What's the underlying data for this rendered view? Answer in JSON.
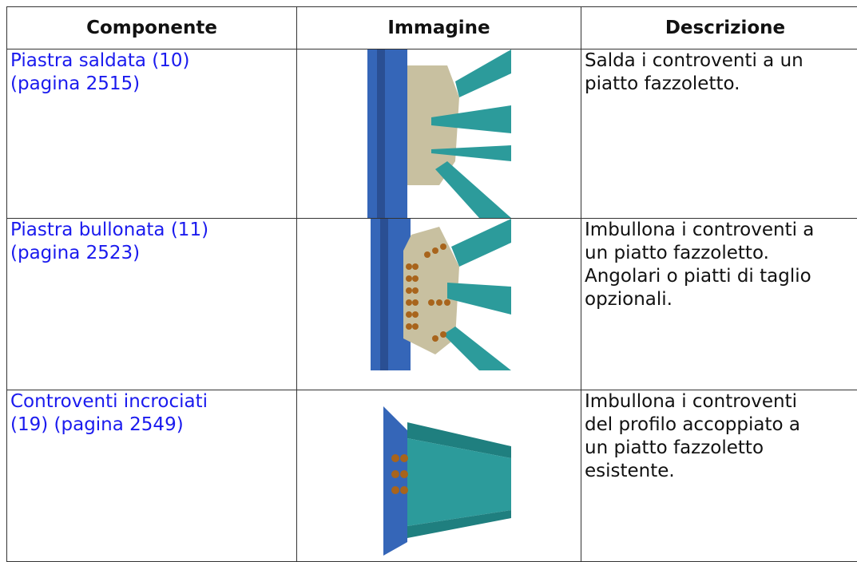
{
  "table": {
    "header": [
      "Componente",
      "Immagine",
      "Descrizione"
    ],
    "rows": [
      {
        "link": [
          "Piastra saldata (10)",
          "(pagina 2515)"
        ],
        "description": [
          "Salda i controventi a un",
          "piatto fazzoletto."
        ]
      },
      {
        "link": [
          "Piastra bullonata (11)",
          "(pagina 2523)"
        ],
        "description": [
          "Imbullona i controventi a",
          "un piatto fazzoletto.",
          "Angolari o piatti di taglio",
          "opzionali."
        ]
      },
      {
        "link": [
          "Controventi incrociati",
          "(19) (pagina 2549)"
        ],
        "description": [
          "Imbullona i controventi",
          "del profilo accoppiato a",
          "un piatto fazzoletto",
          "esistente."
        ]
      }
    ]
  }
}
